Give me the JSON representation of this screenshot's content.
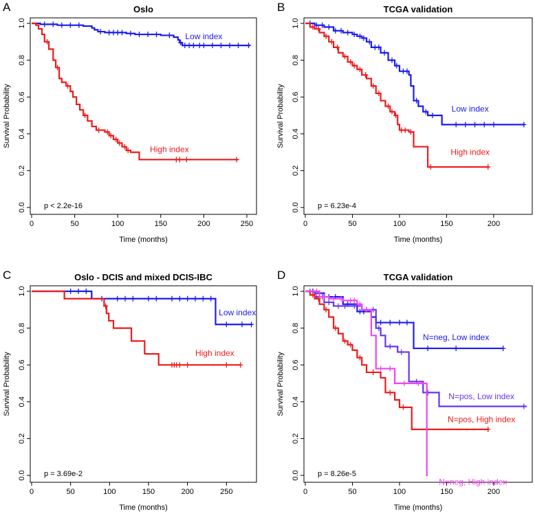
{
  "colors": {
    "blue": "#1a1aee",
    "red": "#ee1a1a",
    "purple": "#6633ee",
    "magenta": "#ee44ee",
    "axis": "#000000"
  },
  "chart_data": [
    {
      "panel_letter": "A",
      "type": "line",
      "title": "Oslo",
      "xlabel": "Time (months)",
      "ylabel": "Survival Probability",
      "xlim": [
        0,
        258
      ],
      "ylim": [
        0,
        1
      ],
      "xticks": [
        0,
        50,
        100,
        150,
        200,
        250
      ],
      "yticks": [
        0.0,
        0.2,
        0.4,
        0.6,
        0.8,
        1.0
      ],
      "pvalue": "p < 2.2e-16",
      "series": [
        {
          "name": "Low index",
          "color": "#1a1aee",
          "steps": [
            [
              0,
              1.0
            ],
            [
              10,
              0.995
            ],
            [
              30,
              0.99
            ],
            [
              60,
              0.985
            ],
            [
              70,
              0.975
            ],
            [
              73,
              0.965
            ],
            [
              77,
              0.955
            ],
            [
              85,
              0.95
            ],
            [
              110,
              0.945
            ],
            [
              120,
              0.94
            ],
            [
              150,
              0.935
            ],
            [
              165,
              0.925
            ],
            [
              170,
              0.91
            ],
            [
              172,
              0.895
            ],
            [
              175,
              0.88
            ],
            [
              254,
              0.88
            ]
          ],
          "censors": [
            15,
            25,
            35,
            45,
            55,
            80,
            90,
            95,
            100,
            105,
            115,
            125,
            135,
            145,
            160,
            173,
            178,
            183,
            188,
            195,
            200,
            210,
            220,
            230,
            240,
            252
          ],
          "label_anchor": [
            200,
            0.915
          ]
        },
        {
          "name": "High index",
          "color": "#ee1a1a",
          "steps": [
            [
              0,
              1.0
            ],
            [
              5,
              0.99
            ],
            [
              8,
              0.97
            ],
            [
              12,
              0.94
            ],
            [
              15,
              0.9
            ],
            [
              20,
              0.86
            ],
            [
              25,
              0.8
            ],
            [
              28,
              0.76
            ],
            [
              32,
              0.7
            ],
            [
              35,
              0.68
            ],
            [
              40,
              0.66
            ],
            [
              45,
              0.63
            ],
            [
              48,
              0.6
            ],
            [
              52,
              0.56
            ],
            [
              56,
              0.53
            ],
            [
              60,
              0.5
            ],
            [
              65,
              0.47
            ],
            [
              70,
              0.44
            ],
            [
              75,
              0.42
            ],
            [
              85,
              0.41
            ],
            [
              90,
              0.39
            ],
            [
              95,
              0.37
            ],
            [
              100,
              0.35
            ],
            [
              105,
              0.33
            ],
            [
              110,
              0.31
            ],
            [
              115,
              0.3
            ],
            [
              125,
              0.26
            ],
            [
              240,
              0.26
            ]
          ],
          "censors": [
            18,
            30,
            42,
            62,
            78,
            88,
            92,
            98,
            102,
            108,
            112,
            168,
            172,
            180,
            238
          ],
          "label_anchor": [
            160,
            0.3
          ]
        }
      ]
    },
    {
      "panel_letter": "B",
      "type": "line",
      "title": "TCGA validation",
      "xlabel": "Time (months)",
      "ylabel": "Survival Probability",
      "xlim": [
        0,
        238
      ],
      "ylim": [
        0,
        1
      ],
      "xticks": [
        0,
        50,
        100,
        150,
        200
      ],
      "yticks": [
        0.0,
        0.2,
        0.4,
        0.6,
        0.8,
        1.0
      ],
      "pvalue": "p = 6.23e-4",
      "series": [
        {
          "name": "Low index",
          "color": "#1a1aee",
          "steps": [
            [
              0,
              1.0
            ],
            [
              10,
              0.99
            ],
            [
              20,
              0.98
            ],
            [
              30,
              0.96
            ],
            [
              40,
              0.95
            ],
            [
              50,
              0.94
            ],
            [
              55,
              0.93
            ],
            [
              60,
              0.92
            ],
            [
              65,
              0.9
            ],
            [
              70,
              0.87
            ],
            [
              80,
              0.84
            ],
            [
              88,
              0.8
            ],
            [
              95,
              0.77
            ],
            [
              100,
              0.74
            ],
            [
              110,
              0.72
            ],
            [
              112,
              0.66
            ],
            [
              115,
              0.58
            ],
            [
              120,
              0.55
            ],
            [
              125,
              0.52
            ],
            [
              130,
              0.5
            ],
            [
              140,
              0.5
            ],
            [
              145,
              0.45
            ],
            [
              233,
              0.45
            ]
          ],
          "censors": [
            5,
            12,
            18,
            25,
            32,
            38,
            45,
            52,
            58,
            62,
            68,
            74,
            78,
            84,
            92,
            97,
            104,
            108,
            118,
            128,
            135,
            160,
            170,
            180,
            190,
            200,
            232
          ],
          "label_anchor": [
            175,
            0.52
          ]
        },
        {
          "name": "High index",
          "color": "#ee1a1a",
          "steps": [
            [
              0,
              1.0
            ],
            [
              5,
              0.98
            ],
            [
              10,
              0.97
            ],
            [
              15,
              0.95
            ],
            [
              20,
              0.93
            ],
            [
              25,
              0.9
            ],
            [
              30,
              0.87
            ],
            [
              35,
              0.84
            ],
            [
              40,
              0.82
            ],
            [
              45,
              0.79
            ],
            [
              50,
              0.77
            ],
            [
              55,
              0.75
            ],
            [
              60,
              0.72
            ],
            [
              65,
              0.7
            ],
            [
              70,
              0.66
            ],
            [
              75,
              0.62
            ],
            [
              80,
              0.58
            ],
            [
              85,
              0.55
            ],
            [
              90,
              0.52
            ],
            [
              95,
              0.5
            ],
            [
              98,
              0.45
            ],
            [
              100,
              0.42
            ],
            [
              110,
              0.41
            ],
            [
              115,
              0.33
            ],
            [
              128,
              0.33
            ],
            [
              130,
              0.22
            ],
            [
              195,
              0.22
            ]
          ],
          "censors": [
            8,
            14,
            22,
            28,
            34,
            42,
            48,
            52,
            58,
            64,
            72,
            78,
            88,
            92,
            96,
            102,
            106,
            112,
            133,
            194
          ],
          "label_anchor": [
            175,
            0.285
          ]
        }
      ]
    },
    {
      "panel_letter": "C",
      "type": "line",
      "title": "Oslo - DCIS and mixed DCIS-IBC",
      "xlabel": "Time (months)",
      "ylabel": "Survival Probability",
      "xlim": [
        0,
        285
      ],
      "ylim": [
        0,
        1
      ],
      "xticks": [
        0,
        50,
        100,
        150,
        200,
        250
      ],
      "yticks": [
        0.0,
        0.2,
        0.4,
        0.6,
        0.8,
        1.0
      ],
      "pvalue": "p = 3.69e-2",
      "series": [
        {
          "name": "Low index",
          "color": "#1a1aee",
          "steps": [
            [
              0,
              1.0
            ],
            [
              75,
              1.0
            ],
            [
              77,
              0.96
            ],
            [
              234,
              0.96
            ],
            [
              236,
              0.82
            ],
            [
              283,
              0.82
            ]
          ],
          "censors": [
            50,
            60,
            70,
            90,
            110,
            120,
            130,
            150,
            160,
            180,
            190,
            200,
            210,
            220,
            230,
            250,
            270,
            282
          ],
          "label_anchor": [
            264,
            0.87
          ]
        },
        {
          "name": "High index",
          "color": "#ee1a1a",
          "steps": [
            [
              0,
              1.0
            ],
            [
              40,
              1.0
            ],
            [
              42,
              0.96
            ],
            [
              90,
              0.96
            ],
            [
              93,
              0.92
            ],
            [
              96,
              0.88
            ],
            [
              99,
              0.84
            ],
            [
              105,
              0.8
            ],
            [
              128,
              0.73
            ],
            [
              145,
              0.66
            ],
            [
              163,
              0.6
            ],
            [
              268,
              0.6
            ]
          ],
          "censors": [
            95,
            180,
            183,
            186,
            190,
            200,
            250,
            268
          ],
          "label_anchor": [
            235,
            0.65
          ]
        }
      ]
    },
    {
      "panel_letter": "D",
      "type": "line",
      "title": "TCGA validation",
      "xlabel": "Time (months)",
      "ylabel": "Survival Probability",
      "xlim": [
        0,
        238
      ],
      "ylim": [
        0,
        1
      ],
      "xticks": [
        0,
        50,
        100,
        150,
        200
      ],
      "yticks": [
        0.0,
        0.2,
        0.4,
        0.6,
        0.8,
        1.0
      ],
      "pvalue": "p = 8.26e-5",
      "series": [
        {
          "name": "N=neg, Low index",
          "color": "#1a1aee",
          "steps": [
            [
              0,
              1.0
            ],
            [
              10,
              0.99
            ],
            [
              20,
              0.97
            ],
            [
              40,
              0.93
            ],
            [
              55,
              0.89
            ],
            [
              70,
              0.86
            ],
            [
              75,
              0.83
            ],
            [
              112,
              0.83
            ],
            [
              115,
              0.69
            ],
            [
              210,
              0.69
            ]
          ],
          "censors": [
            8,
            15,
            25,
            32,
            45,
            58,
            62,
            80,
            90,
            100,
            108,
            130,
            160,
            210
          ],
          "label_anchor": [
            160,
            0.735
          ]
        },
        {
          "name": "N=pos, Low index",
          "color": "#6633ee",
          "steps": [
            [
              0,
              1.0
            ],
            [
              10,
              0.97
            ],
            [
              20,
              0.94
            ],
            [
              30,
              0.92
            ],
            [
              60,
              0.9
            ],
            [
              75,
              0.8
            ],
            [
              80,
              0.76
            ],
            [
              85,
              0.7
            ],
            [
              98,
              0.67
            ],
            [
              110,
              0.51
            ],
            [
              125,
              0.45
            ],
            [
              135,
              0.45
            ],
            [
              142,
              0.375
            ],
            [
              235,
              0.375
            ]
          ],
          "censors": [
            5,
            12,
            18,
            25,
            35,
            42,
            52,
            65,
            72,
            78,
            90,
            102,
            118,
            130,
            232
          ],
          "label_anchor": [
            187,
            0.415
          ]
        },
        {
          "name": "N=pos, High index",
          "color": "#ee1a1a",
          "steps": [
            [
              0,
              1.0
            ],
            [
              5,
              0.98
            ],
            [
              10,
              0.96
            ],
            [
              15,
              0.93
            ],
            [
              20,
              0.9
            ],
            [
              25,
              0.86
            ],
            [
              30,
              0.8
            ],
            [
              35,
              0.77
            ],
            [
              40,
              0.73
            ],
            [
              45,
              0.71
            ],
            [
              50,
              0.68
            ],
            [
              55,
              0.64
            ],
            [
              60,
              0.6
            ],
            [
              65,
              0.56
            ],
            [
              80,
              0.53
            ],
            [
              85,
              0.45
            ],
            [
              95,
              0.41
            ],
            [
              100,
              0.37
            ],
            [
              113,
              0.25
            ],
            [
              195,
              0.25
            ]
          ],
          "censors": [
            8,
            14,
            22,
            32,
            42,
            48,
            58,
            72,
            90,
            104,
            194
          ],
          "label_anchor": [
            187,
            0.29
          ]
        },
        {
          "name": "N=neg, High index",
          "color": "#ee44ee",
          "steps": [
            [
              0,
              1.0
            ],
            [
              15,
              0.97
            ],
            [
              25,
              0.96
            ],
            [
              40,
              0.95
            ],
            [
              55,
              0.93
            ],
            [
              60,
              0.9
            ],
            [
              70,
              0.76
            ],
            [
              75,
              0.58
            ],
            [
              95,
              0.5
            ],
            [
              125,
              0.5
            ],
            [
              129,
              0.0
            ],
            [
              130,
              0.0
            ]
          ],
          "censors": [
            12,
            20,
            30,
            38,
            48,
            52,
            58,
            65,
            80,
            90,
            105,
            120
          ],
          "label_anchor": [
            178,
            -0.05
          ]
        }
      ]
    }
  ]
}
